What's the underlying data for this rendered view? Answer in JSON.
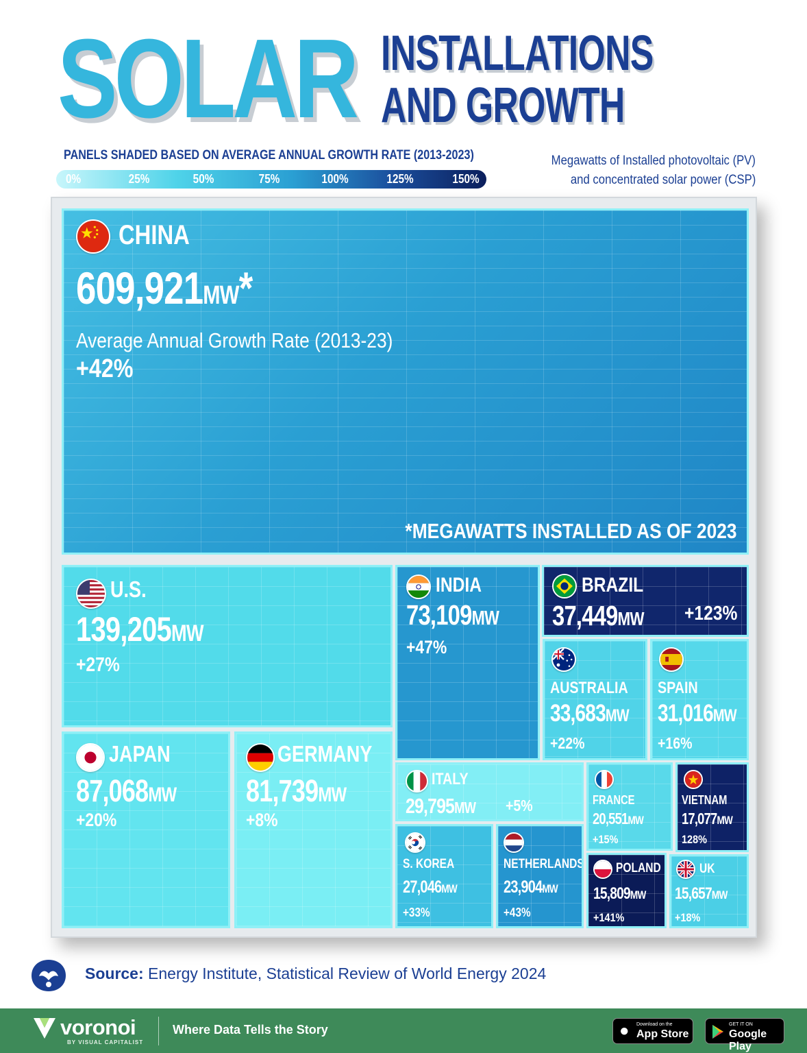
{
  "header": {
    "title_main": "SOLAR",
    "title_line1": "INSTALLATIONS",
    "title_line2": "AND GROWTH",
    "legend_title": "PANELS SHADED BASED ON AVERAGE ANNUAL GROWTH RATE (2013-2023)",
    "legend_ticks": [
      "0%",
      "25%",
      "50%",
      "75%",
      "100%",
      "125%",
      "150%"
    ],
    "note_line1": "Megawatts of Installed photovoltaic (PV)",
    "note_line2": "and concentrated solar power (CSP)"
  },
  "chart_data": {
    "type": "treemap",
    "unit": "MW",
    "footnote": "*MEGAWATTS INSTALLED AS OF 2023",
    "color_scale": {
      "min": 0,
      "max": 150,
      "low_color": "#c8f6fb",
      "high_color": "#0b1f5c"
    },
    "items": [
      {
        "name": "CHINA",
        "value": 609921,
        "value_label": "609,921",
        "growth": 42,
        "growth_label": "+42%",
        "caption": "Average Annual Growth Rate (2013-23)",
        "asterisk": "*",
        "color": "#2a9fd3"
      },
      {
        "name": "U.S.",
        "value": 139205,
        "value_label": "139,205",
        "growth": 27,
        "growth_label": "+27%",
        "color": "#52dbea"
      },
      {
        "name": "JAPAN",
        "value": 87068,
        "value_label": "87,068",
        "growth": 20,
        "growth_label": "+20%",
        "color": "#62e4ef"
      },
      {
        "name": "GERMANY",
        "value": 81739,
        "value_label": "81,739",
        "growth": 8,
        "growth_label": "+8%",
        "color": "#7aeef4"
      },
      {
        "name": "INDIA",
        "value": 73109,
        "value_label": "73,109",
        "growth": 47,
        "growth_label": "+47%",
        "color": "#2697cf"
      },
      {
        "name": "BRAZIL",
        "value": 37449,
        "value_label": "37,449",
        "growth": 123,
        "growth_label": "+123%",
        "color": "#10266c"
      },
      {
        "name": "AUSTRALIA",
        "value": 33683,
        "value_label": "33,683",
        "growth": 22,
        "growth_label": "+22%",
        "color": "#50d3e8"
      },
      {
        "name": "SPAIN",
        "value": 31016,
        "value_label": "31,016",
        "growth": 16,
        "growth_label": "+16%",
        "color": "#55d8ea"
      },
      {
        "name": "ITALY",
        "value": 29795,
        "value_label": "29,795",
        "growth": 5,
        "growth_label": "+5%",
        "color": "#82eef5"
      },
      {
        "name": "S. KOREA",
        "value": 27046,
        "value_label": "27,046",
        "growth": 33,
        "growth_label": "+33%",
        "color": "#3ec0e2"
      },
      {
        "name": "NETHERLANDS",
        "value": 23904,
        "value_label": "23,904",
        "growth": 43,
        "growth_label": "+43%",
        "color": "#2595cf"
      },
      {
        "name": "FRANCE",
        "value": 20551,
        "value_label": "20,551",
        "growth": 15,
        "growth_label": "+15%",
        "color": "#59d9ea"
      },
      {
        "name": "VIETNAM",
        "value": 17077,
        "value_label": "17,077",
        "growth": 128,
        "growth_label": "128%",
        "color": "#0e2266"
      },
      {
        "name": "POLAND",
        "value": 15809,
        "value_label": "15,809",
        "growth": 141,
        "growth_label": "+141%",
        "color": "#0b1b57"
      },
      {
        "name": "UK",
        "value": 15657,
        "value_label": "15,657",
        "growth": 18,
        "growth_label": "+18%",
        "color": "#4bcfe6"
      }
    ]
  },
  "source": {
    "label": "Source:",
    "text": "Energy Institute, Statistical Review of World Energy 2024"
  },
  "footer": {
    "brand": "voronoi",
    "brand_sub": "BY VISUAL CAPITALIST",
    "tagline": "Where Data Tells the Story",
    "appstore_small": "Download on the",
    "appstore_big": "App Store",
    "googleplay_small": "GET IT ON",
    "googleplay_big": "Google Play"
  }
}
